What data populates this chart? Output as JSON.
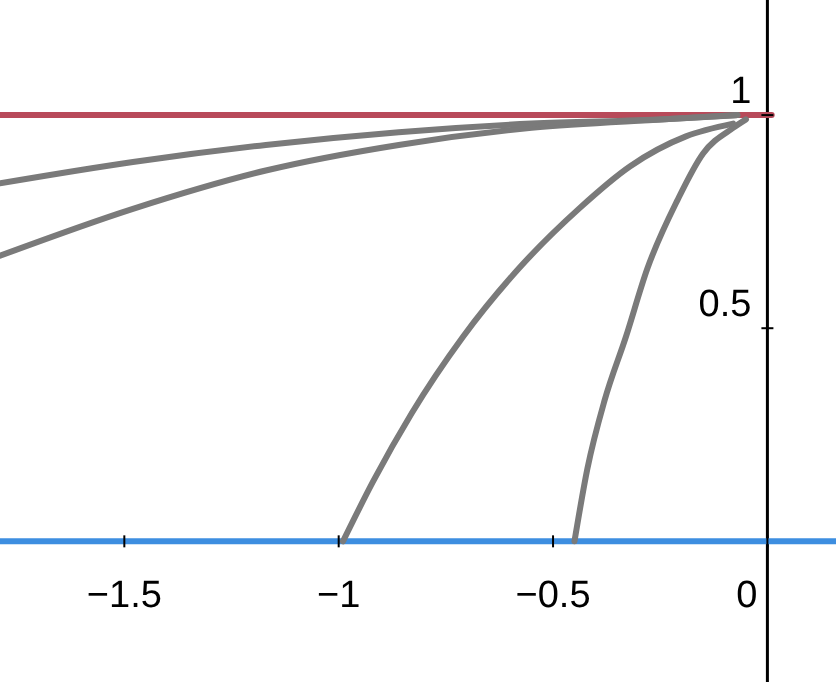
{
  "chart_data": {
    "type": "line",
    "xlim": [
      -1.79,
      0.16
    ],
    "ylim": [
      -0.33,
      1.27
    ],
    "xticks": [
      -1.5,
      -1,
      -0.5,
      0
    ],
    "yticks": [
      0.5,
      1
    ],
    "marker": "none",
    "line_style": "solid",
    "series": [
      {
        "color": "#3d8ee0",
        "x": [
          -1.79,
          0.16
        ],
        "values": [
          0,
          0
        ]
      },
      {
        "color": "#b84a5a",
        "x": [
          -1.79,
          0.01
        ],
        "values": [
          1,
          1
        ]
      },
      {
        "color": "#7a7a7a",
        "x": [
          -0.45,
          -0.42,
          -0.38,
          -0.33,
          -0.28,
          -0.21,
          -0.15,
          -0.08,
          -0.05
        ],
        "values": [
          0,
          0.17,
          0.33,
          0.48,
          0.64,
          0.8,
          0.91,
          0.97,
          0.99
        ]
      },
      {
        "color": "#7a7a7a",
        "x": [
          -0.99,
          -0.92,
          -0.83,
          -0.71,
          -0.58,
          -0.44,
          -0.32,
          -0.19,
          -0.08
        ],
        "values": [
          0,
          0.14,
          0.3,
          0.48,
          0.64,
          0.78,
          0.88,
          0.95,
          0.98
        ]
      },
      {
        "color": "#7a7a7a",
        "x": [
          -1.79,
          -1.48,
          -1.17,
          -0.86,
          -0.55,
          -0.24,
          -0.07
        ],
        "values": [
          0.67,
          0.78,
          0.87,
          0.93,
          0.97,
          0.99,
          1
        ]
      },
      {
        "color": "#7a7a7a",
        "x": [
          -1.79,
          -1.48,
          -1.17,
          -0.86,
          -0.55,
          -0.24,
          -0.07
        ],
        "values": [
          0.84,
          0.89,
          0.93,
          0.96,
          0.98,
          0.99,
          1
        ]
      }
    ]
  }
}
